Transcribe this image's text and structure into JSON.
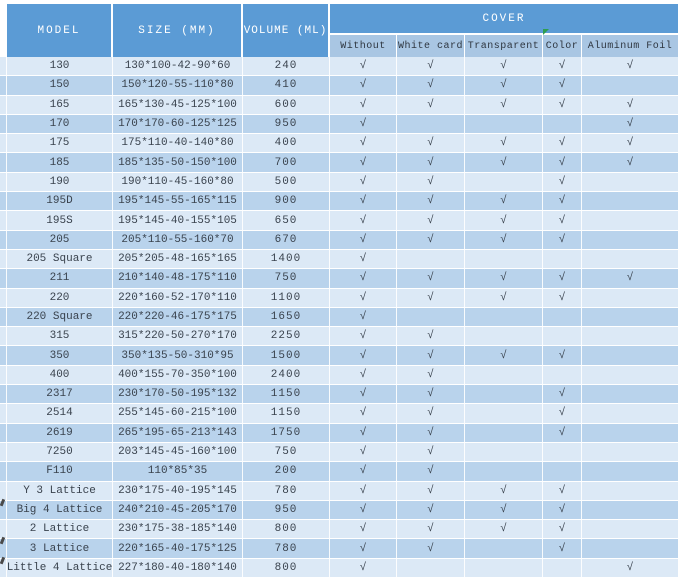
{
  "colors": {
    "header_bg": "#5B9BD5",
    "subheader_bg": "#A9C6E3",
    "row_light": "#DCE9F6",
    "row_dark": "#B9D3EC",
    "text": "#39424D",
    "header_text": "#FFFFFF",
    "comment_flag_green": "#2E9E4F"
  },
  "table": {
    "check_glyph": "√",
    "headers": {
      "model": "MODEL",
      "size": "SIZE (MM)",
      "volume": "VOLUME (ML)",
      "cover": "COVER",
      "cover_options": [
        "Without",
        "White card",
        "Transparent",
        "Color",
        "Aluminum Foil"
      ]
    },
    "rows": [
      {
        "model": "130",
        "size": "130*100-42-90*60",
        "volume": "240",
        "covers": [
          1,
          1,
          1,
          1,
          1
        ]
      },
      {
        "model": "150",
        "size": "150*120-55-110*80",
        "volume": "410",
        "covers": [
          1,
          1,
          1,
          1,
          0
        ]
      },
      {
        "model": "165",
        "size": "165*130-45-125*100",
        "volume": "600",
        "covers": [
          1,
          1,
          1,
          1,
          1
        ]
      },
      {
        "model": "170",
        "size": "170*170-60-125*125",
        "volume": "950",
        "covers": [
          1,
          0,
          0,
          0,
          1
        ]
      },
      {
        "model": "175",
        "size": "175*110-40-140*80",
        "volume": "400",
        "covers": [
          1,
          1,
          1,
          1,
          1
        ]
      },
      {
        "model": "185",
        "size": "185*135-50-150*100",
        "volume": "700",
        "covers": [
          1,
          1,
          1,
          1,
          1
        ]
      },
      {
        "model": "190",
        "size": "190*110-45-160*80",
        "volume": "500",
        "covers": [
          1,
          1,
          0,
          1,
          0
        ]
      },
      {
        "model": "195D",
        "size": "195*145-55-165*115",
        "volume": "900",
        "covers": [
          1,
          1,
          1,
          1,
          0
        ]
      },
      {
        "model": "195S",
        "size": "195*145-40-155*105",
        "volume": "650",
        "covers": [
          1,
          1,
          1,
          1,
          0
        ]
      },
      {
        "model": "205",
        "size": "205*110-55-160*70",
        "volume": "670",
        "covers": [
          1,
          1,
          1,
          1,
          0
        ]
      },
      {
        "model": "205 Square",
        "size": "205*205-48-165*165",
        "volume": "1400",
        "covers": [
          1,
          0,
          0,
          0,
          0
        ]
      },
      {
        "model": "211",
        "size": "210*140-48-175*110",
        "volume": "750",
        "covers": [
          1,
          1,
          1,
          1,
          1
        ]
      },
      {
        "model": "220",
        "size": "220*160-52-170*110",
        "volume": "1100",
        "covers": [
          1,
          1,
          1,
          1,
          0
        ]
      },
      {
        "model": "220 Square",
        "size": "220*220-46-175*175",
        "volume": "1650",
        "covers": [
          1,
          0,
          0,
          0,
          0
        ]
      },
      {
        "model": "315",
        "size": "315*220-50-270*170",
        "volume": "2250",
        "covers": [
          1,
          1,
          0,
          0,
          0
        ]
      },
      {
        "model": "350",
        "size": "350*135-50-310*95",
        "volume": "1500",
        "covers": [
          1,
          1,
          1,
          1,
          0
        ]
      },
      {
        "model": "400",
        "size": "400*155-70-350*100",
        "volume": "2400",
        "covers": [
          1,
          1,
          0,
          0,
          0
        ]
      },
      {
        "model": "2317",
        "size": "230*170-50-195*132",
        "volume": "1150",
        "covers": [
          1,
          1,
          0,
          1,
          0
        ]
      },
      {
        "model": "2514",
        "size": "255*145-60-215*100",
        "volume": "1150",
        "covers": [
          1,
          1,
          0,
          1,
          0
        ]
      },
      {
        "model": "2619",
        "size": "265*195-65-213*143",
        "volume": "1750",
        "covers": [
          1,
          1,
          0,
          1,
          0
        ]
      },
      {
        "model": "7250",
        "size": "203*145-45-160*100",
        "volume": "750",
        "covers": [
          1,
          1,
          0,
          0,
          0
        ]
      },
      {
        "model": "F110",
        "size": "110*85*35",
        "volume": "200",
        "covers": [
          1,
          1,
          0,
          0,
          0
        ]
      },
      {
        "model": "Y 3 Lattice",
        "size": "230*175-40-195*145",
        "volume": "780",
        "covers": [
          1,
          1,
          1,
          1,
          0
        ]
      },
      {
        "model": "Big 4 Lattice",
        "size": "240*210-45-205*170",
        "volume": "950",
        "covers": [
          1,
          1,
          1,
          1,
          0
        ],
        "left_mark": true
      },
      {
        "model": "2 Lattice",
        "size": "230*175-38-185*140",
        "volume": "800",
        "covers": [
          1,
          1,
          1,
          1,
          0
        ]
      },
      {
        "model": "3 Lattice",
        "size": "220*165-40-175*125",
        "volume": "780",
        "covers": [
          1,
          1,
          0,
          1,
          0
        ],
        "left_mark": true
      },
      {
        "model": "Little 4 Lattice",
        "size": "227*180-40-180*140",
        "volume": "800",
        "covers": [
          1,
          0,
          0,
          0,
          1
        ],
        "left_mark": true
      }
    ]
  }
}
